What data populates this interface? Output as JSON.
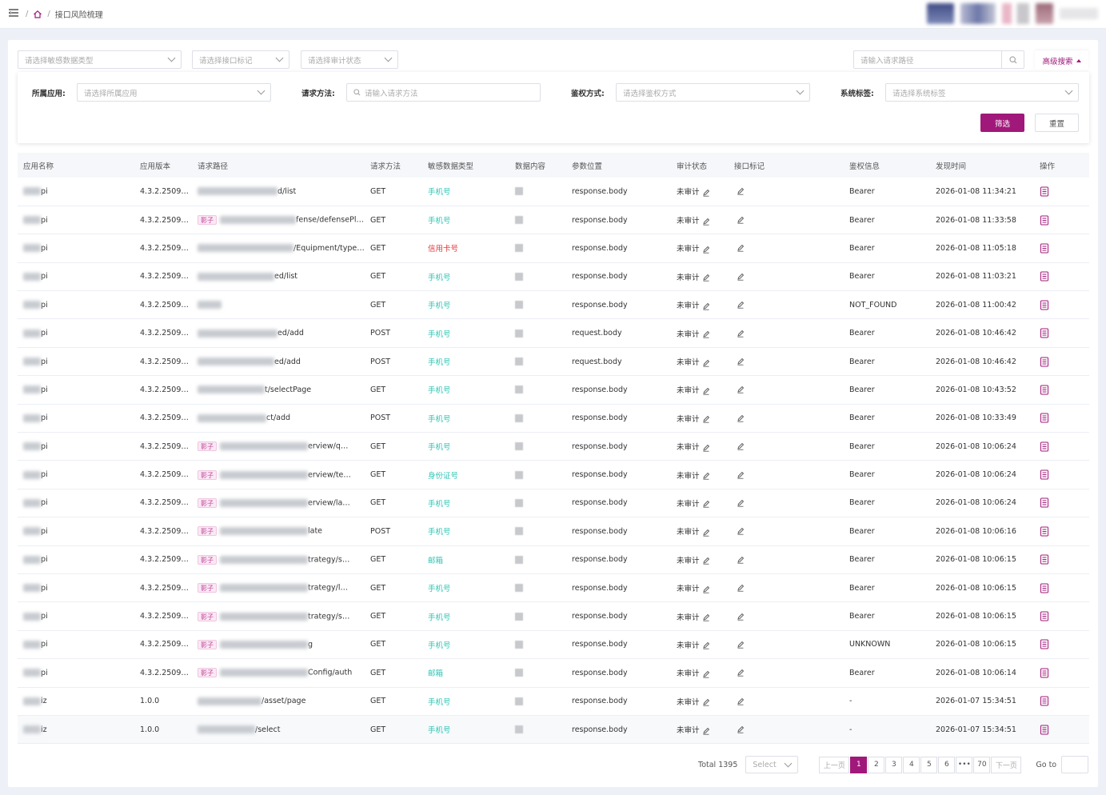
{
  "breadcrumb": {
    "sep": "/",
    "current": "接口风险梳理"
  },
  "filters": {
    "sensitive_type": "请选择敏感数据类型",
    "interface_mark": "请选择接口标记",
    "audit_status": "请选择审计状态",
    "path_search": "请输入请求路径",
    "advanced": "高级搜索"
  },
  "advanced": {
    "app_label": "所属应用:",
    "app_placeholder": "请选择所属应用",
    "method_label": "请求方法:",
    "method_placeholder": "请输入请求方法",
    "auth_label": "鉴权方式:",
    "auth_placeholder": "请选择鉴权方式",
    "tag_label": "系统标签:",
    "tag_placeholder": "请选择系统标签",
    "filter_btn": "筛选",
    "reset_btn": "重置"
  },
  "columns": [
    "应用名称",
    "应用版本",
    "请求路径",
    "请求方法",
    "敏感数据类型",
    "数据内容",
    "参数位置",
    "审计状态",
    "接口标记",
    "鉴权信息",
    "发现时间",
    "操作"
  ],
  "tag_label": "影子",
  "rows": [
    {
      "app": "pi",
      "ver": "4.3.2.2509…",
      "path": "d/list",
      "tag": false,
      "method": "GET",
      "sens": "手机号",
      "red": false,
      "pos": "response.body",
      "audit": "未审计",
      "auth": "Bearer",
      "time": "2026-01-08 11:34:21"
    },
    {
      "app": "pi",
      "ver": "4.3.2.2509…",
      "path": "fense/defensePlug/vis…",
      "tag": true,
      "method": "GET",
      "sens": "手机号",
      "red": false,
      "pos": "response.body",
      "audit": "未审计",
      "auth": "Bearer",
      "time": "2026-01-08 11:33:58"
    },
    {
      "app": "pi",
      "ver": "4.3.2.2509…",
      "path": "/Equipment/type/select",
      "tag": false,
      "method": "GET",
      "sens": "信用卡号",
      "red": true,
      "pos": "response.body",
      "audit": "未审计",
      "auth": "Bearer",
      "time": "2026-01-08 11:05:18"
    },
    {
      "app": "pi",
      "ver": "4.3.2.2509…",
      "path": "ed/list",
      "tag": false,
      "method": "GET",
      "sens": "手机号",
      "red": false,
      "pos": "response.body",
      "audit": "未审计",
      "auth": "Bearer",
      "time": "2026-01-08 11:03:21"
    },
    {
      "app": "pi",
      "ver": "4.3.2.2509…",
      "path": "",
      "tag": false,
      "method": "GET",
      "sens": "手机号",
      "red": false,
      "pos": "response.body",
      "audit": "未审计",
      "auth": "NOT_FOUND",
      "time": "2026-01-08 11:00:42"
    },
    {
      "app": "pi",
      "ver": "4.3.2.2509…",
      "path": "ed/add",
      "tag": false,
      "method": "POST",
      "sens": "手机号",
      "red": false,
      "pos": "request.body",
      "audit": "未审计",
      "auth": "Bearer",
      "time": "2026-01-08 10:46:42"
    },
    {
      "app": "pi",
      "ver": "4.3.2.2509…",
      "path": "ed/add",
      "tag": false,
      "method": "POST",
      "sens": "手机号",
      "red": false,
      "pos": "request.body",
      "audit": "未审计",
      "auth": "Bearer",
      "time": "2026-01-08 10:46:42"
    },
    {
      "app": "pi",
      "ver": "4.3.2.2509…",
      "path": "t/selectPage",
      "tag": false,
      "method": "GET",
      "sens": "手机号",
      "red": false,
      "pos": "response.body",
      "audit": "未审计",
      "auth": "Bearer",
      "time": "2026-01-08 10:43:52"
    },
    {
      "app": "pi",
      "ver": "4.3.2.2509…",
      "path": "ct/add",
      "tag": false,
      "method": "POST",
      "sens": "手机号",
      "red": false,
      "pos": "response.body",
      "audit": "未审计",
      "auth": "Bearer",
      "time": "2026-01-08 10:33:49"
    },
    {
      "app": "pi",
      "ver": "4.3.2.2509…",
      "path": "erview/q…",
      "tag": true,
      "method": "GET",
      "sens": "手机号",
      "red": false,
      "pos": "response.body",
      "audit": "未审计",
      "auth": "Bearer",
      "time": "2026-01-08 10:06:24"
    },
    {
      "app": "pi",
      "ver": "4.3.2.2509…",
      "path": "erview/te…",
      "tag": true,
      "method": "GET",
      "sens": "身份证号",
      "red": false,
      "pos": "response.body",
      "audit": "未审计",
      "auth": "Bearer",
      "time": "2026-01-08 10:06:24"
    },
    {
      "app": "pi",
      "ver": "4.3.2.2509…",
      "path": "erview/la…",
      "tag": true,
      "method": "GET",
      "sens": "手机号",
      "red": false,
      "pos": "response.body",
      "audit": "未审计",
      "auth": "Bearer",
      "time": "2026-01-08 10:06:24"
    },
    {
      "app": "pi",
      "ver": "4.3.2.2509…",
      "path": "late",
      "tag": true,
      "method": "POST",
      "sens": "手机号",
      "red": false,
      "pos": "response.body",
      "audit": "未审计",
      "auth": "Bearer",
      "time": "2026-01-08 10:06:16"
    },
    {
      "app": "pi",
      "ver": "4.3.2.2509…",
      "path": "trategy/s…",
      "tag": true,
      "method": "GET",
      "sens": "邮箱",
      "red": false,
      "pos": "response.body",
      "audit": "未审计",
      "auth": "Bearer",
      "time": "2026-01-08 10:06:15"
    },
    {
      "app": "pi",
      "ver": "4.3.2.2509…",
      "path": "trategy/l…",
      "tag": true,
      "method": "GET",
      "sens": "手机号",
      "red": false,
      "pos": "response.body",
      "audit": "未审计",
      "auth": "Bearer",
      "time": "2026-01-08 10:06:15"
    },
    {
      "app": "pi",
      "ver": "4.3.2.2509…",
      "path": "trategy/s…",
      "tag": true,
      "method": "GET",
      "sens": "手机号",
      "red": false,
      "pos": "response.body",
      "audit": "未审计",
      "auth": "Bearer",
      "time": "2026-01-08 10:06:15"
    },
    {
      "app": "pi",
      "ver": "4.3.2.2509…",
      "path": "g",
      "tag": true,
      "method": "GET",
      "sens": "手机号",
      "red": false,
      "pos": "response.body",
      "audit": "未审计",
      "auth": "UNKNOWN",
      "time": "2026-01-08 10:06:15"
    },
    {
      "app": "pi",
      "ver": "4.3.2.2509…",
      "path": "Config/auth",
      "tag": true,
      "method": "GET",
      "sens": "邮箱",
      "red": false,
      "pos": "response.body",
      "audit": "未审计",
      "auth": "Bearer",
      "time": "2026-01-08 10:06:14"
    },
    {
      "app": "iz",
      "ver": "1.0.0",
      "path": "/asset/page",
      "tag": false,
      "method": "GET",
      "sens": "手机号",
      "red": false,
      "pos": "response.body",
      "audit": "未审计",
      "auth": "-",
      "time": "2026-01-07 15:34:51"
    },
    {
      "app": "iz",
      "ver": "1.0.0",
      "path": "/select",
      "tag": false,
      "method": "GET",
      "sens": "手机号",
      "red": false,
      "pos": "response.body",
      "audit": "未审计",
      "auth": "-",
      "time": "2026-01-07 15:34:51"
    }
  ],
  "pagination": {
    "total": "Total 1395",
    "page_size": "Select",
    "prev": "上一页",
    "next": "下一页",
    "pages": [
      "1",
      "2",
      "3",
      "4",
      "5",
      "6",
      "•••",
      "70"
    ],
    "goto": "Go to"
  }
}
